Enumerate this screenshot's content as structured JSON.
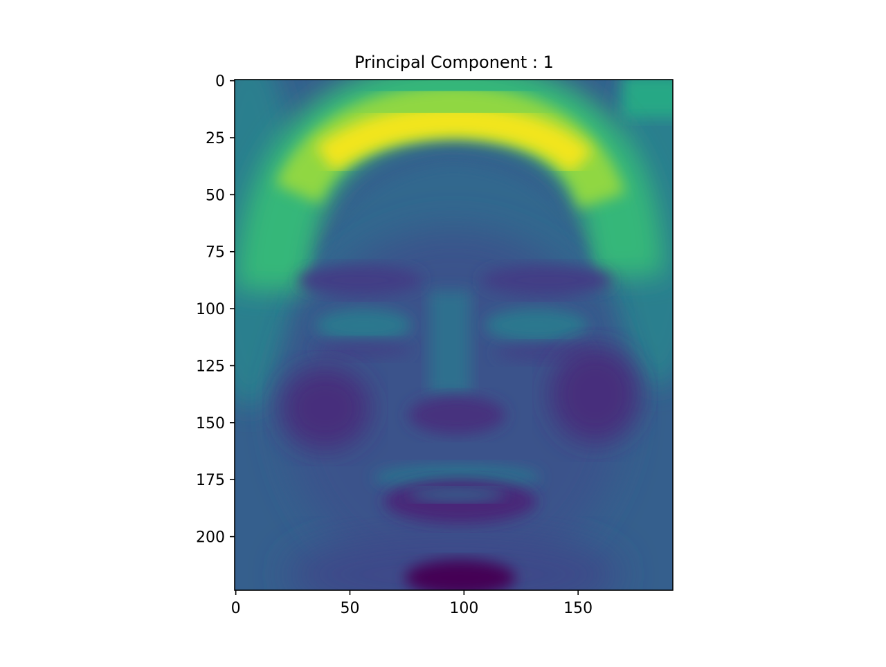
{
  "chart_data": {
    "type": "heatmap",
    "title": "Principal Component : 1",
    "colormap": "viridis",
    "image_shape": {
      "rows": 224,
      "cols": 192
    },
    "xlim": [
      -0.5,
      191.5
    ],
    "ylim": [
      223.5,
      -0.5
    ],
    "x_ticks": [
      0,
      50,
      100,
      150
    ],
    "y_ticks": [
      0,
      25,
      50,
      75,
      100,
      125,
      150,
      175,
      200
    ],
    "content": "eigenface heatmap: bright yellow band across the forehead/hairline near rows 15-50, darker purple regions at eyes, cheeks, mouth and chin"
  }
}
